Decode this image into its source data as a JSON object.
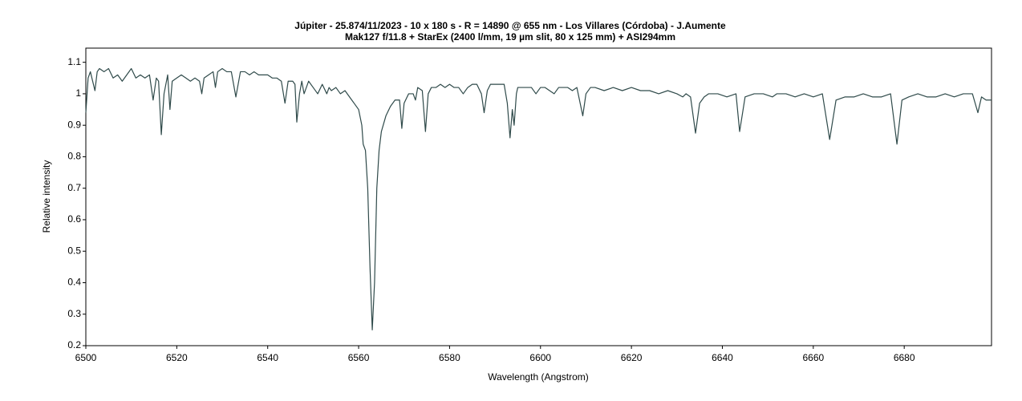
{
  "chart_data": {
    "type": "line",
    "title": "Júpiter - 25.874/11/2023 - 10 x 180 s - R = 14890 @ 655 nm - Los Villares (Córdoba) - J.Aumente",
    "subtitle": "Mak127 f/11.8 + StarEx (2400 l/mm, 19 µm slit, 80 x 125 mm) + ASI294mm",
    "x_label": "Wavelength (Angstrom)",
    "y_label": "Relative intensity",
    "xlim": [
      6500,
      6699.2
    ],
    "ylim": [
      0.2,
      1.145
    ],
    "xticks": [
      6500,
      6520,
      6540,
      6560,
      6580,
      6600,
      6620,
      6640,
      6660,
      6680
    ],
    "yticks": [
      0.2,
      0.3,
      0.4,
      0.5,
      0.6,
      0.7,
      0.8,
      0.9,
      1,
      1.1
    ],
    "grid": false,
    "series": [
      {
        "color": "#2f4a4a",
        "x": [
          6500,
          6500.5,
          6501,
          6502,
          6502.5,
          6503,
          6504,
          6505,
          6506,
          6507,
          6508,
          6509,
          6510,
          6511,
          6512,
          6513,
          6514,
          6514.8,
          6515.5,
          6516,
          6516.6,
          6517.2,
          6518,
          6518.5,
          6519,
          6520,
          6521,
          6522,
          6523,
          6524,
          6525,
          6525.5,
          6526,
          6527,
          6528,
          6528.5,
          6529,
          6530,
          6531,
          6532,
          6533,
          6534,
          6535,
          6536,
          6537,
          6538,
          6539,
          6540,
          6541,
          6542,
          6543,
          6543.8,
          6544.5,
          6545.5,
          6546,
          6546.4,
          6547,
          6547.5,
          6548,
          6549,
          6550,
          6551,
          6552,
          6553,
          6553.5,
          6554,
          6555,
          6556,
          6557,
          6558,
          6559,
          6560,
          6560.7,
          6561,
          6561.5,
          6562,
          6562.5,
          6563,
          6563.5,
          6564,
          6564.5,
          6565,
          6566,
          6567,
          6568,
          6569,
          6569.5,
          6570,
          6571,
          6572,
          6572.5,
          6573,
          6574,
          6574.7,
          6575.3,
          6576,
          6577,
          6578,
          6579,
          6580,
          6581,
          6582,
          6583,
          6584,
          6585,
          6586,
          6587,
          6587.6,
          6588.3,
          6589,
          6590,
          6591,
          6592,
          6592.7,
          6593.3,
          6593.8,
          6594.2,
          6594.7,
          6595,
          6596,
          6597,
          6598,
          6599,
          6600,
          6601,
          6602,
          6603,
          6604,
          6605,
          6606,
          6607,
          6608,
          6609.3,
          6610,
          6611,
          6612,
          6614,
          6616,
          6618,
          6620,
          6622,
          6624,
          6626,
          6628,
          6630,
          6631.3,
          6632,
          6633,
          6634.1,
          6635,
          6636,
          6637,
          6639,
          6641,
          6643,
          6643.8,
          6645,
          6647,
          6649,
          6651,
          6652,
          6654,
          6656,
          6658,
          6660,
          6662,
          6663.6,
          6665,
          6667,
          6669,
          6671,
          6673,
          6675,
          6677,
          6678.4,
          6679.5,
          6681,
          6683,
          6685,
          6687,
          6689,
          6691,
          6693,
          6695,
          6696.2,
          6697,
          6698,
          6699.2
        ],
        "values": [
          0.94,
          1.05,
          1.07,
          1.01,
          1.07,
          1.08,
          1.07,
          1.08,
          1.05,
          1.06,
          1.04,
          1.06,
          1.08,
          1.05,
          1.06,
          1.05,
          1.06,
          0.98,
          1.05,
          1.04,
          0.87,
          1.0,
          1.06,
          0.95,
          1.04,
          1.05,
          1.06,
          1.05,
          1.04,
          1.05,
          1.04,
          1.0,
          1.05,
          1.06,
          1.07,
          1.02,
          1.07,
          1.08,
          1.07,
          1.07,
          0.99,
          1.07,
          1.07,
          1.06,
          1.07,
          1.06,
          1.06,
          1.06,
          1.05,
          1.05,
          1.04,
          0.97,
          1.04,
          1.04,
          1.03,
          0.91,
          1.0,
          1.04,
          1.0,
          1.04,
          1.02,
          1.0,
          1.03,
          1.0,
          1.02,
          1.01,
          1.02,
          1.0,
          1.01,
          0.99,
          0.97,
          0.95,
          0.9,
          0.84,
          0.82,
          0.7,
          0.45,
          0.25,
          0.4,
          0.7,
          0.82,
          0.88,
          0.93,
          0.96,
          0.98,
          0.98,
          0.89,
          0.97,
          1.0,
          1.0,
          0.98,
          1.02,
          1.01,
          0.88,
          1.0,
          1.02,
          1.02,
          1.03,
          1.02,
          1.03,
          1.02,
          1.02,
          1.0,
          1.02,
          1.03,
          1.03,
          1.0,
          0.94,
          1.01,
          1.03,
          1.03,
          1.03,
          1.03,
          0.97,
          0.86,
          0.95,
          0.9,
          1.0,
          1.02,
          1.02,
          1.02,
          1.02,
          1.0,
          1.02,
          1.02,
          1.01,
          1.0,
          1.02,
          1.02,
          1.02,
          1.01,
          1.02,
          0.93,
          1.0,
          1.02,
          1.02,
          1.01,
          1.02,
          1.01,
          1.02,
          1.01,
          1.01,
          1.0,
          1.01,
          1.0,
          0.99,
          1.0,
          0.99,
          0.875,
          0.97,
          0.99,
          1.0,
          1.0,
          0.99,
          1.0,
          0.88,
          0.99,
          1.0,
          1.0,
          0.99,
          1.0,
          1.0,
          0.99,
          1.0,
          0.99,
          1.0,
          0.855,
          0.98,
          0.99,
          0.99,
          1.0,
          0.99,
          0.99,
          1.0,
          0.84,
          0.98,
          0.99,
          1.0,
          0.99,
          0.99,
          1.0,
          0.99,
          1.0,
          1.0,
          0.94,
          0.99,
          0.98,
          0.98
        ]
      }
    ]
  }
}
